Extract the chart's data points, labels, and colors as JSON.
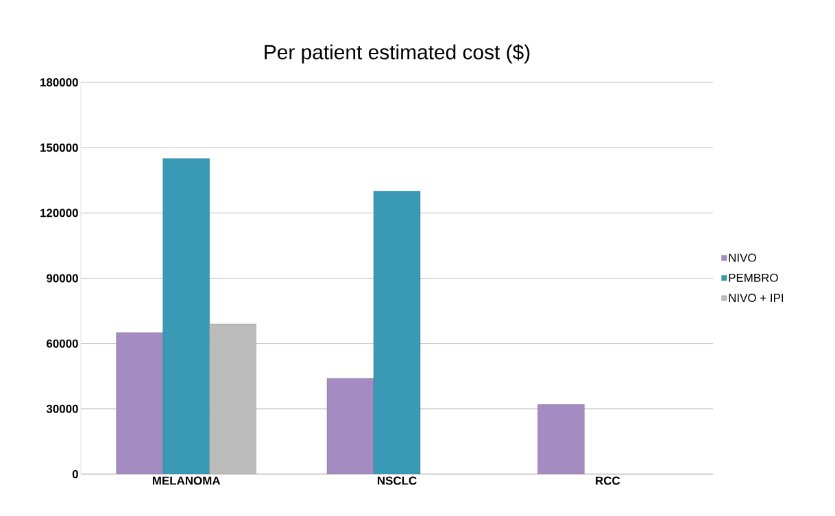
{
  "chart_data": {
    "type": "bar",
    "title": "Per patient estimated cost ($)",
    "categories": [
      "MELANOMA",
      "NSCLC",
      "RCC"
    ],
    "series": [
      {
        "name": "NIVO",
        "color": "#a48cc2",
        "values": [
          65000,
          44000,
          32000
        ]
      },
      {
        "name": "PEMBRO",
        "color": "#3a9ab5",
        "values": [
          145000,
          130000,
          null
        ]
      },
      {
        "name": "NIVO + IPI",
        "color": "#bcbcbc",
        "values": [
          69000,
          null,
          null
        ]
      }
    ],
    "ylim": [
      0,
      180000
    ],
    "yticks": [
      0,
      30000,
      60000,
      90000,
      120000,
      150000,
      180000
    ],
    "grid": "y",
    "legend": "right"
  }
}
